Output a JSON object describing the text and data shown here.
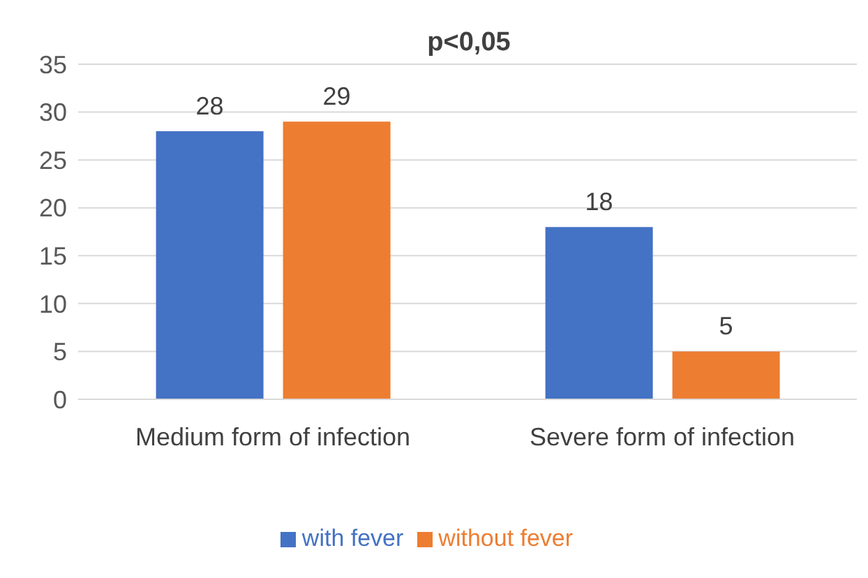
{
  "chart_data": {
    "type": "bar",
    "title": "p<0,05",
    "categories": [
      "Medium form of infection",
      "Severe form of infection"
    ],
    "series": [
      {
        "name": "with fever",
        "color": "#4472c4",
        "values": [
          28,
          18
        ]
      },
      {
        "name": "without fever",
        "color": "#ed7d31",
        "values": [
          29,
          5
        ]
      }
    ],
    "ylim": [
      0,
      35
    ],
    "yticks": [
      0,
      5,
      10,
      15,
      20,
      25,
      30,
      35
    ],
    "grid": "y",
    "legend": "bottom",
    "data_labels": true
  }
}
